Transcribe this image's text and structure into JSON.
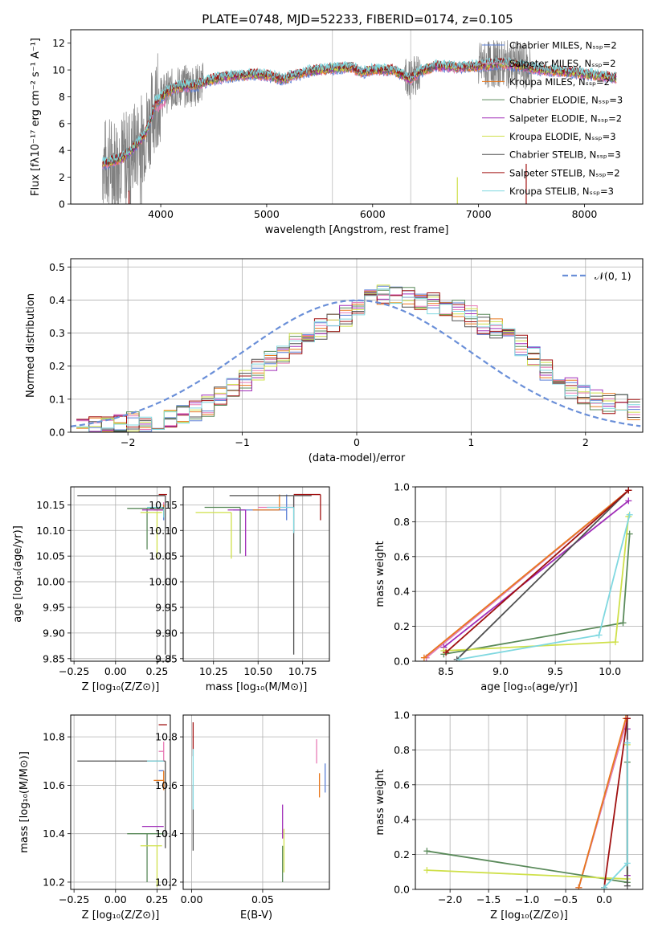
{
  "figure": {
    "title": "PLATE=0748, MJD=52233, FIBERID=0174, z=0.105"
  },
  "colors": {
    "chabrier_miles": "#5b7fd6",
    "salpeter_miles": "#e87ab5",
    "kroupa_miles": "#e8781e",
    "chabrier_elodie": "#5a8a5a",
    "salpeter_elodie": "#a02db8",
    "kroupa_elodie": "#cfe04a",
    "chabrier_stelib": "#505050",
    "salpeter_stelib": "#a01010",
    "kroupa_stelib": "#7fd8e0",
    "data": "#808080",
    "normal": "#6a8fd8"
  },
  "chart_data": [
    {
      "id": "spectrum",
      "type": "line",
      "xlabel": "wavelength [Angstrom, rest frame]",
      "ylabel": "Flux [fλ10⁻¹⁷ erg cm⁻² s⁻¹ A⁻¹]",
      "xlim": [
        3150,
        8550
      ],
      "ylim": [
        0,
        13
      ],
      "xticks": [
        4000,
        5000,
        6000,
        7000,
        8000
      ],
      "yticks": [
        0,
        2,
        4,
        6,
        8,
        10,
        12
      ],
      "legend_position": "top-right",
      "legend": [
        {
          "key": "chabrier_miles",
          "label": "Chabrier MILES, Nₛₛₚ=2"
        },
        {
          "key": "salpeter_miles",
          "label": "Salpeter MILES, Nₛₛₚ=2"
        },
        {
          "key": "kroupa_miles",
          "label": "Kroupa MILES, Nₛₛₚ=2"
        },
        {
          "key": "chabrier_elodie",
          "label": "Chabrier ELODIE, Nₛₛₚ=3"
        },
        {
          "key": "salpeter_elodie",
          "label": "Salpeter ELODIE, Nₛₛₚ=2"
        },
        {
          "key": "kroupa_elodie",
          "label": "Kroupa ELODIE, Nₛₛₚ=3"
        },
        {
          "key": "chabrier_stelib",
          "label": "Chabrier STELIB, Nₛₛₚ=3"
        },
        {
          "key": "salpeter_stelib",
          "label": "Salpeter STELIB, Nₛₛₚ=2"
        },
        {
          "key": "kroupa_stelib",
          "label": "Kroupa STELIB, Nₛₛₚ=3"
        }
      ],
      "continuum": [
        [
          3450,
          3.0
        ],
        [
          3550,
          3.2
        ],
        [
          3650,
          3.5
        ],
        [
          3750,
          4.2
        ],
        [
          3850,
          5.2
        ],
        [
          3900,
          6.2
        ],
        [
          3950,
          7.6
        ],
        [
          4050,
          8.3
        ],
        [
          4150,
          8.7
        ],
        [
          4250,
          8.8
        ],
        [
          4350,
          8.9
        ],
        [
          4450,
          9.2
        ],
        [
          4600,
          9.5
        ],
        [
          4800,
          9.6
        ],
        [
          4900,
          9.7
        ],
        [
          5000,
          9.6
        ],
        [
          5150,
          9.3
        ],
        [
          5250,
          9.6
        ],
        [
          5400,
          9.9
        ],
        [
          5600,
          10.1
        ],
        [
          5800,
          10.2
        ],
        [
          5900,
          9.8
        ],
        [
          6000,
          10.0
        ],
        [
          6200,
          10.0
        ],
        [
          6350,
          9.3
        ],
        [
          6450,
          9.9
        ],
        [
          6600,
          10.3
        ],
        [
          6800,
          10.2
        ],
        [
          7000,
          10.3
        ],
        [
          7200,
          10.5
        ],
        [
          7400,
          10.3
        ],
        [
          7600,
          10.0
        ],
        [
          7800,
          9.9
        ],
        [
          8000,
          9.7
        ],
        [
          8300,
          9.4
        ]
      ]
    },
    {
      "id": "residuals",
      "type": "histogram",
      "xlabel": "(data-model)/error",
      "ylabel": "Normed distribution",
      "xlim": [
        -2.5,
        2.5
      ],
      "ylim": [
        0,
        0.525
      ],
      "xticks": [
        -2,
        -1,
        0,
        1,
        2
      ],
      "yticks": [
        0.0,
        0.1,
        0.2,
        0.3,
        0.4,
        0.5
      ],
      "legend": [
        {
          "key": "normal",
          "label": "𝒩(0, 1)"
        }
      ],
      "legend_position": "top-right",
      "base": [
        0.01,
        0.015,
        0.02,
        0.025,
        0.03,
        0.035,
        0.04,
        0.045,
        0.05,
        0.06,
        0.08,
        0.11,
        0.14,
        0.16,
        0.19,
        0.21,
        0.24,
        0.27,
        0.29,
        0.31,
        0.33,
        0.35,
        0.38,
        0.41,
        0.42,
        0.42,
        0.41,
        0.4,
        0.39,
        0.38,
        0.37,
        0.35,
        0.33,
        0.31,
        0.29,
        0.26,
        0.23,
        0.19,
        0.16,
        0.13,
        0.12,
        0.1,
        0.09,
        0.08,
        0.07
      ]
    },
    {
      "id": "age-vs-Z",
      "type": "scatter",
      "xlabel": "Z [log₁₀(Z/Z⊙)]",
      "ylabel": "age  [log₁₀(age/yr)]",
      "xlim": [
        -0.27,
        0.33
      ],
      "ylim": [
        9.845,
        10.185
      ],
      "xticks": [
        -0.25,
        0.0,
        0.25
      ],
      "yticks": [
        9.85,
        9.9,
        9.95,
        10.0,
        10.05,
        10.1,
        10.15
      ],
      "points": [
        {
          "key": "chabrier_miles",
          "x": 0.29,
          "y": 10.14,
          "xerr": [
            0.02,
            0.0
          ],
          "yerr": [
            0.02,
            0.01
          ]
        },
        {
          "key": "salpeter_miles",
          "x": 0.29,
          "y": 10.145,
          "xerr": [
            0.03,
            0.0
          ],
          "yerr": [
            0.01,
            0.01
          ]
        },
        {
          "key": "kroupa_miles",
          "x": 0.29,
          "y": 10.14,
          "xerr": [
            0.06,
            0.0
          ],
          "yerr": [
            0.01,
            0.01
          ]
        },
        {
          "key": "chabrier_elodie",
          "x": 0.19,
          "y": 10.143,
          "xerr": [
            0.12,
            0.1
          ],
          "yerr": [
            0.08,
            0.0
          ]
        },
        {
          "key": "salpeter_elodie",
          "x": 0.21,
          "y": 10.14,
          "xerr": [
            0.05,
            0.08
          ],
          "yerr": [
            0.0,
            0.0
          ]
        },
        {
          "key": "kroupa_elodie",
          "x": 0.25,
          "y": 10.135,
          "xerr": [
            0.1,
            0.03
          ],
          "yerr": [
            0.09,
            0.0
          ]
        },
        {
          "key": "chabrier_stelib",
          "x": 0.3,
          "y": 10.168,
          "xerr": [
            0.53,
            0.0
          ],
          "yerr": [
            0.31,
            0.0
          ]
        },
        {
          "key": "salpeter_stelib",
          "x": 0.28,
          "y": 10.17,
          "xerr": [
            0.02,
            0.03
          ],
          "yerr": [
            0.0,
            0.0
          ]
        },
        {
          "key": "kroupa_stelib",
          "x": 0.29,
          "y": 10.145,
          "xerr": [
            0.1,
            0.0
          ],
          "yerr": [
            0.02,
            0.0
          ]
        }
      ]
    },
    {
      "id": "age-vs-mass",
      "type": "scatter",
      "xlabel": "mass [log₁₀(M/M⊙)]",
      "ylabel": "",
      "xlim": [
        10.08,
        10.9
      ],
      "ylim": [
        9.845,
        10.185
      ],
      "xticks": [
        10.25,
        10.5,
        10.75
      ],
      "yticks": [
        9.85,
        9.9,
        9.95,
        10.0,
        10.05,
        10.1,
        10.15
      ],
      "points": [
        {
          "key": "chabrier_miles",
          "x": 10.66,
          "y": 10.14,
          "xerr": [
            0.3,
            0.0
          ],
          "yerr": [
            0.02,
            0.03
          ]
        },
        {
          "key": "salpeter_miles",
          "x": 10.7,
          "y": 10.145,
          "xerr": [
            0.2,
            0.0
          ],
          "yerr": [
            0.0,
            0.02
          ]
        },
        {
          "key": "kroupa_miles",
          "x": 10.62,
          "y": 10.14,
          "xerr": [
            0.15,
            0.0
          ],
          "yerr": [
            0.0,
            0.03
          ]
        },
        {
          "key": "chabrier_elodie",
          "x": 10.4,
          "y": 10.145,
          "xerr": [
            0.2,
            0.0
          ],
          "yerr": [
            0.09,
            0.0
          ]
        },
        {
          "key": "salpeter_elodie",
          "x": 10.43,
          "y": 10.14,
          "xerr": [
            0.1,
            0.0
          ],
          "yerr": [
            0.09,
            0.0
          ]
        },
        {
          "key": "kroupa_elodie",
          "x": 10.35,
          "y": 10.135,
          "xerr": [
            0.2,
            0.0
          ],
          "yerr": [
            0.09,
            0.0
          ]
        },
        {
          "key": "chabrier_stelib",
          "x": 10.7,
          "y": 10.168,
          "xerr": [
            0.36,
            0.1
          ],
          "yerr": [
            0.31,
            0.0
          ]
        },
        {
          "key": "salpeter_stelib",
          "x": 10.85,
          "y": 10.17,
          "xerr": [
            0.15,
            0.0
          ],
          "yerr": [
            0.05,
            0.0
          ]
        },
        {
          "key": "kroupa_stelib",
          "x": 10.7,
          "y": 10.145,
          "xerr": [
            0.15,
            0.0
          ],
          "yerr": [
            0.05,
            0.0
          ]
        }
      ]
    },
    {
      "id": "weight-vs-age",
      "type": "line",
      "xlabel": "age  [log₁₀(age/yr)]",
      "ylabel": "mass weight",
      "xlim": [
        8.22,
        10.3
      ],
      "ylim": [
        0,
        1
      ],
      "xticks": [
        8.5,
        9.0,
        9.5,
        10.0
      ],
      "yticks": [
        0.0,
        0.2,
        0.4,
        0.6,
        0.8,
        1.0
      ],
      "series": [
        {
          "key": "chabrier_miles",
          "points": [
            [
              8.32,
              0.02
            ],
            [
              10.17,
              0.98
            ]
          ]
        },
        {
          "key": "salpeter_miles",
          "points": [
            [
              8.32,
              0.02
            ],
            [
              10.17,
              0.98
            ]
          ]
        },
        {
          "key": "kroupa_miles",
          "points": [
            [
              8.3,
              0.02
            ],
            [
              10.17,
              0.98
            ]
          ]
        },
        {
          "key": "chabrier_elodie",
          "points": [
            [
              8.48,
              0.04
            ],
            [
              10.12,
              0.22
            ],
            [
              10.18,
              0.73
            ]
          ]
        },
        {
          "key": "salpeter_elodie",
          "points": [
            [
              8.48,
              0.08
            ],
            [
              10.17,
              0.92
            ]
          ]
        },
        {
          "key": "kroupa_elodie",
          "points": [
            [
              8.48,
              0.06
            ],
            [
              10.05,
              0.11
            ],
            [
              10.17,
              0.83
            ]
          ]
        },
        {
          "key": "chabrier_stelib",
          "points": [
            [
              8.6,
              0.01
            ],
            [
              10.17,
              0.98
            ]
          ]
        },
        {
          "key": "salpeter_stelib",
          "points": [
            [
              8.5,
              0.05
            ],
            [
              10.17,
              0.98
            ]
          ]
        },
        {
          "key": "kroupa_stelib",
          "points": [
            [
              8.62,
              0.01
            ],
            [
              9.9,
              0.15
            ],
            [
              10.18,
              0.84
            ]
          ]
        }
      ]
    },
    {
      "id": "mass-vs-Z",
      "type": "scatter",
      "xlabel": "Z [log₁₀(Z/Z⊙)]",
      "ylabel": "mass [log₁₀(M/M⊙)]",
      "xlim": [
        -0.27,
        0.33
      ],
      "ylim": [
        10.17,
        10.89
      ],
      "xticks": [
        -0.25,
        0.0,
        0.25
      ],
      "yticks": [
        10.2,
        10.4,
        10.6,
        10.8
      ],
      "points": [
        {
          "key": "chabrier_miles",
          "x": 0.29,
          "y": 10.66,
          "xerr": [
            0.03,
            0.0
          ],
          "yerr": [
            0.0,
            0.0
          ]
        },
        {
          "key": "salpeter_miles",
          "x": 0.29,
          "y": 10.74,
          "xerr": [
            0.03,
            0.0
          ],
          "yerr": [
            0.04,
            0.04
          ]
        },
        {
          "key": "kroupa_miles",
          "x": 0.29,
          "y": 10.62,
          "xerr": [
            0.06,
            0.0
          ],
          "yerr": [
            0.04,
            0.04
          ]
        },
        {
          "key": "chabrier_elodie",
          "x": 0.19,
          "y": 10.4,
          "xerr": [
            0.12,
            0.1
          ],
          "yerr": [
            0.2,
            0.0
          ]
        },
        {
          "key": "salpeter_elodie",
          "x": 0.21,
          "y": 10.43,
          "xerr": [
            0.05,
            0.08
          ],
          "yerr": [
            0.0,
            0.0
          ]
        },
        {
          "key": "kroupa_elodie",
          "x": 0.25,
          "y": 10.35,
          "xerr": [
            0.1,
            0.03
          ],
          "yerr": [
            0.17,
            0.0
          ]
        },
        {
          "key": "chabrier_stelib",
          "x": 0.3,
          "y": 10.7,
          "xerr": [
            0.53,
            0.0
          ],
          "yerr": [
            0.36,
            0.0
          ]
        },
        {
          "key": "salpeter_stelib",
          "x": 0.28,
          "y": 10.85,
          "xerr": [
            0.02,
            0.03
          ],
          "yerr": [
            0.0,
            0.0
          ]
        },
        {
          "key": "kroupa_stelib",
          "x": 0.29,
          "y": 10.7,
          "xerr": [
            0.1,
            0.0
          ],
          "yerr": [
            0.0,
            0.0
          ]
        }
      ]
    },
    {
      "id": "mass-vs-ebv",
      "type": "scatter",
      "xlabel": "E(B-V)",
      "ylabel": "",
      "xlim": [
        -0.006,
        0.097
      ],
      "ylim": [
        10.17,
        10.89
      ],
      "xticks": [
        0.0,
        0.05
      ],
      "yticks": [
        10.2,
        10.4,
        10.6,
        10.8
      ],
      "points": [
        {
          "key": "chabrier_miles",
          "x": 0.094,
          "y": 10.63,
          "yerr": [
            0.06,
            0.06
          ]
        },
        {
          "key": "salpeter_miles",
          "x": 0.088,
          "y": 10.74,
          "yerr": [
            0.05,
            0.05
          ]
        },
        {
          "key": "kroupa_miles",
          "x": 0.09,
          "y": 10.6,
          "yerr": [
            0.05,
            0.05
          ]
        },
        {
          "key": "chabrier_elodie",
          "x": 0.064,
          "y": 10.35,
          "yerr": [
            0.15,
            0.0
          ]
        },
        {
          "key": "salpeter_elodie",
          "x": 0.064,
          "y": 10.45,
          "yerr": [
            0.07,
            0.07
          ]
        },
        {
          "key": "kroupa_elodie",
          "x": 0.065,
          "y": 10.33,
          "yerr": [
            0.09,
            0.09
          ]
        },
        {
          "key": "chabrier_stelib",
          "x": 0.001,
          "y": 10.45,
          "yerr": [
            0.12,
            0.15
          ]
        },
        {
          "key": "salpeter_stelib",
          "x": 0.001,
          "y": 10.78,
          "yerr": [
            0.06,
            0.08
          ]
        },
        {
          "key": "kroupa_stelib",
          "x": 0.001,
          "y": 10.6,
          "yerr": [
            0.1,
            0.15
          ]
        }
      ]
    },
    {
      "id": "weight-vs-Z",
      "type": "line",
      "xlabel": "Z [log₁₀(Z/Z⊙)]",
      "ylabel": "mass weight",
      "xlim": [
        -2.45,
        0.5
      ],
      "ylim": [
        0,
        1
      ],
      "xticks": [
        -2.0,
        -1.5,
        -1.0,
        -0.5,
        0.0
      ],
      "yticks": [
        0.0,
        0.2,
        0.4,
        0.6,
        0.8,
        1.0
      ],
      "series": [
        {
          "key": "chabrier_miles",
          "points": [
            [
              -0.33,
              0.01
            ],
            [
              0.3,
              0.98
            ]
          ]
        },
        {
          "key": "salpeter_miles",
          "points": [
            [
              -0.33,
              0.01
            ],
            [
              0.3,
              0.98
            ]
          ]
        },
        {
          "key": "kroupa_miles",
          "points": [
            [
              -0.33,
              0.01
            ],
            [
              0.28,
              0.98
            ]
          ]
        },
        {
          "key": "chabrier_elodie",
          "points": [
            [
              -2.3,
              0.22
            ],
            [
              0.3,
              0.04
            ],
            [
              0.3,
              0.73
            ]
          ]
        },
        {
          "key": "salpeter_elodie",
          "points": [
            [
              0.3,
              0.08
            ],
            [
              0.3,
              0.92
            ]
          ]
        },
        {
          "key": "kroupa_elodie",
          "points": [
            [
              -2.3,
              0.11
            ],
            [
              0.3,
              0.06
            ],
            [
              0.3,
              0.83
            ]
          ]
        },
        {
          "key": "chabrier_stelib",
          "points": [
            [
              0.3,
              0.02
            ],
            [
              0.3,
              0.98
            ]
          ]
        },
        {
          "key": "salpeter_stelib",
          "points": [
            [
              0.0,
              0.01
            ],
            [
              0.3,
              0.98
            ]
          ]
        },
        {
          "key": "kroupa_stelib",
          "points": [
            [
              0.0,
              0.01
            ],
            [
              0.3,
              0.15
            ],
            [
              0.3,
              0.84
            ]
          ]
        }
      ]
    }
  ]
}
